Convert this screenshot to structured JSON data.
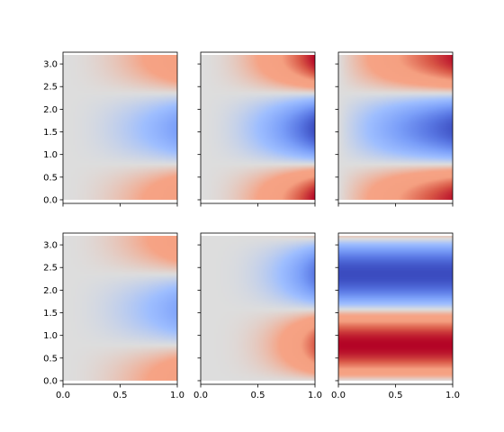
{
  "chart_data": {
    "type": "heatmap",
    "layout": {
      "rows": 2,
      "cols": 3,
      "sharex": true,
      "sharey": true
    },
    "colormap": "coolwarm",
    "colormap_stops": [
      [
        0.0,
        "#3b4cc0"
      ],
      [
        0.125,
        "#5977e3"
      ],
      [
        0.25,
        "#7b9ff9"
      ],
      [
        0.375,
        "#9ebeff"
      ],
      [
        0.5,
        "#dddddd"
      ],
      [
        0.625,
        "#f6a385"
      ],
      [
        0.75,
        "#f5a081"
      ],
      [
        0.875,
        "#d95847"
      ],
      [
        1.0,
        "#b40426"
      ]
    ],
    "xlim": [
      0,
      1
    ],
    "ylim": [
      -0.08,
      3.26
    ],
    "extent": {
      "x": [
        0,
        1
      ],
      "y": [
        0,
        3.2
      ]
    },
    "x_ticks": [
      "0.0",
      "0.5",
      "1.0"
    ],
    "x_tick_values": [
      0,
      0.5,
      1
    ],
    "y_ticks": [
      "0.0",
      "0.5",
      "1.0",
      "1.5",
      "2.0",
      "2.5",
      "3.0"
    ],
    "y_tick_values": [
      0,
      0.5,
      1,
      1.5,
      2,
      2.5,
      3
    ],
    "grid": false,
    "panels": [
      {
        "row": 0,
        "col": 0,
        "field": "x^2*cos(2y)",
        "x_exponent": 2,
        "y_frequency": 2,
        "amplitude": 0.5,
        "vmin": -1,
        "vmax": 1
      },
      {
        "row": 0,
        "col": 1,
        "field": "x^2*cos(2y)",
        "x_exponent": 2,
        "y_frequency": 2,
        "amplitude": 1.0,
        "vmin": -1,
        "vmax": 1
      },
      {
        "row": 0,
        "col": 2,
        "field": "x*cos(2y)",
        "x_exponent": 1,
        "y_frequency": 2,
        "amplitude": 0.95,
        "vmin": -1,
        "vmax": 1
      },
      {
        "row": 1,
        "col": 0,
        "field": "x^2*cos(2y)",
        "x_exponent": 2,
        "y_frequency": 2,
        "amplitude": 0.45,
        "vmin": -1,
        "vmax": 1
      },
      {
        "row": 1,
        "col": 1,
        "field": "x^3*sin(2y)",
        "x_exponent": 3,
        "y_frequency": 2,
        "amplitude": 0.75,
        "phase": "sin",
        "vmin": -1,
        "vmax": 1
      },
      {
        "row": 1,
        "col": 2,
        "field": "sin(2y)",
        "x_exponent": 0,
        "y_frequency": 2,
        "amplitude": 1.0,
        "phase": "sin",
        "vmin": -1,
        "vmax": 1
      }
    ]
  }
}
